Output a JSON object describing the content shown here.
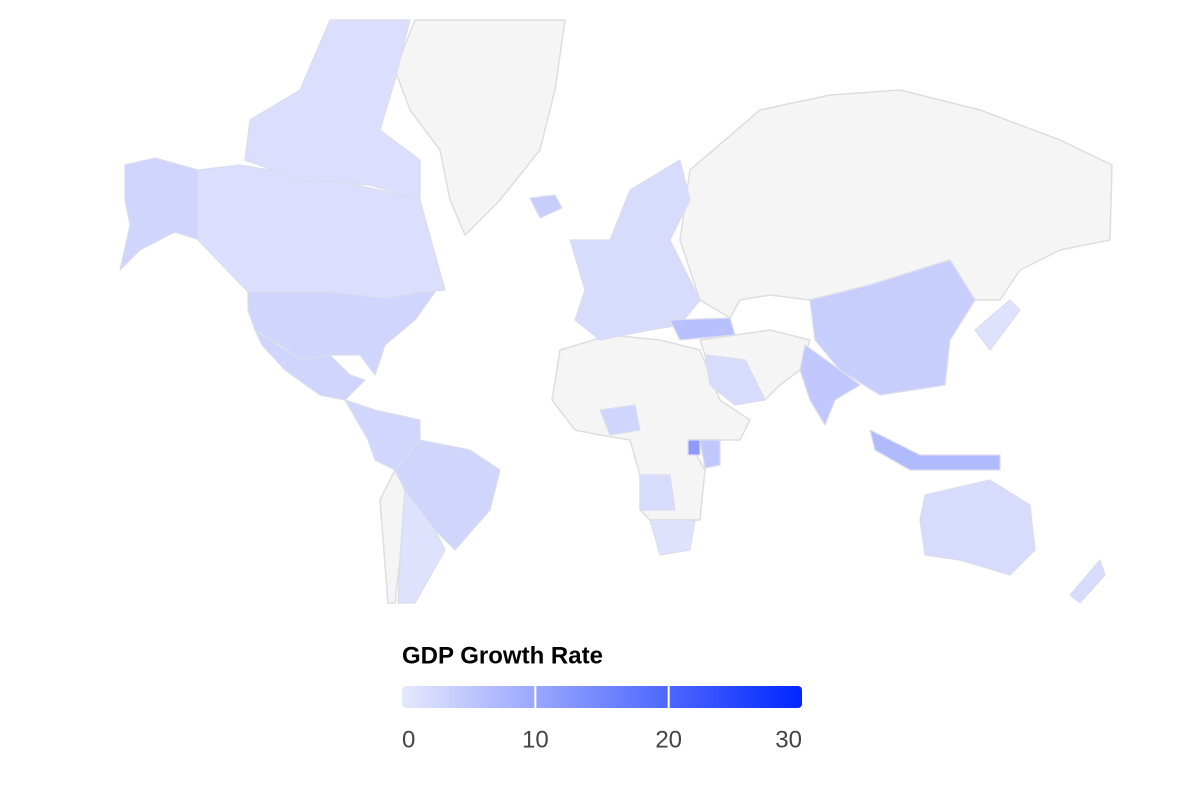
{
  "chart_data": {
    "type": "choropleth",
    "legend_title": "GDP Growth Rate",
    "colorscale": [
      "#e6e8fc",
      "#0026ff"
    ],
    "clim": [
      0,
      30
    ],
    "cticks": [
      0,
      10,
      20,
      30
    ],
    "values": [
      3,
      1.5,
      3,
      2.9,
      1,
      2.7,
      2,
      2,
      6,
      4,
      5,
      2,
      1,
      7,
      2,
      2,
      1,
      3,
      12,
      5,
      2,
      4
    ]
  }
}
